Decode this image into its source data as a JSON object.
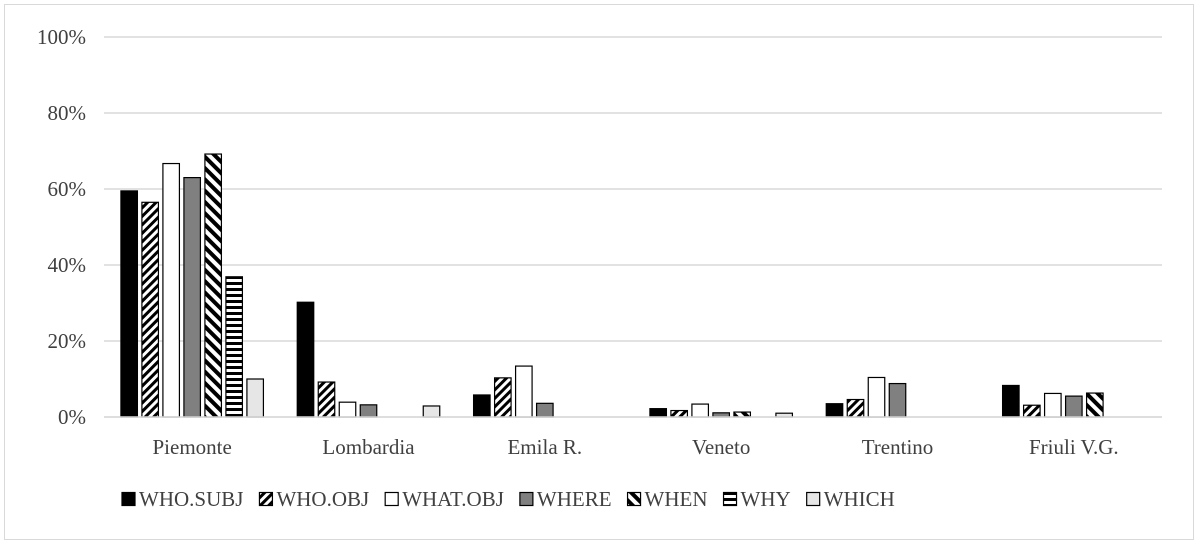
{
  "chart_data": {
    "type": "bar",
    "categories": [
      "Piemonte",
      "Lombardia",
      "Emila R.",
      "Veneto",
      "Trentino",
      "Friuli V.G."
    ],
    "series": [
      {
        "name": "WHO.SUBJ",
        "values": [
          59.5,
          30.2,
          5.8,
          2.2,
          3.5,
          8.3
        ],
        "pattern": "solid-black"
      },
      {
        "name": "WHO.OBJ",
        "values": [
          56.5,
          9.2,
          10.3,
          1.7,
          4.6,
          3.1
        ],
        "pattern": "diagonal-dense"
      },
      {
        "name": "WHAT.OBJ",
        "values": [
          66.7,
          3.9,
          13.4,
          3.4,
          10.4,
          6.2
        ],
        "pattern": "white"
      },
      {
        "name": "WHERE",
        "values": [
          63.0,
          3.2,
          3.6,
          1.1,
          8.8,
          5.5
        ],
        "pattern": "solid-gray"
      },
      {
        "name": "WHEN",
        "values": [
          69.2,
          0,
          0,
          1.3,
          0,
          6.3
        ],
        "pattern": "diagonal-wide"
      },
      {
        "name": "WHY",
        "values": [
          36.9,
          0,
          0,
          0,
          0,
          0
        ],
        "pattern": "horizontal"
      },
      {
        "name": "WHICH",
        "values": [
          10.0,
          2.9,
          0,
          1.0,
          0,
          0
        ],
        "pattern": "light-gray"
      }
    ],
    "yticks": [
      "0%",
      "20%",
      "40%",
      "60%",
      "80%",
      "100%"
    ],
    "ylim": [
      0,
      100
    ],
    "grid": true,
    "legend_position": "bottom",
    "colors": {
      "black": "#000000",
      "gray": "#808080",
      "light_gray": "#e6e6e6",
      "grid": "#d9d9d9",
      "text": "#404040"
    }
  }
}
